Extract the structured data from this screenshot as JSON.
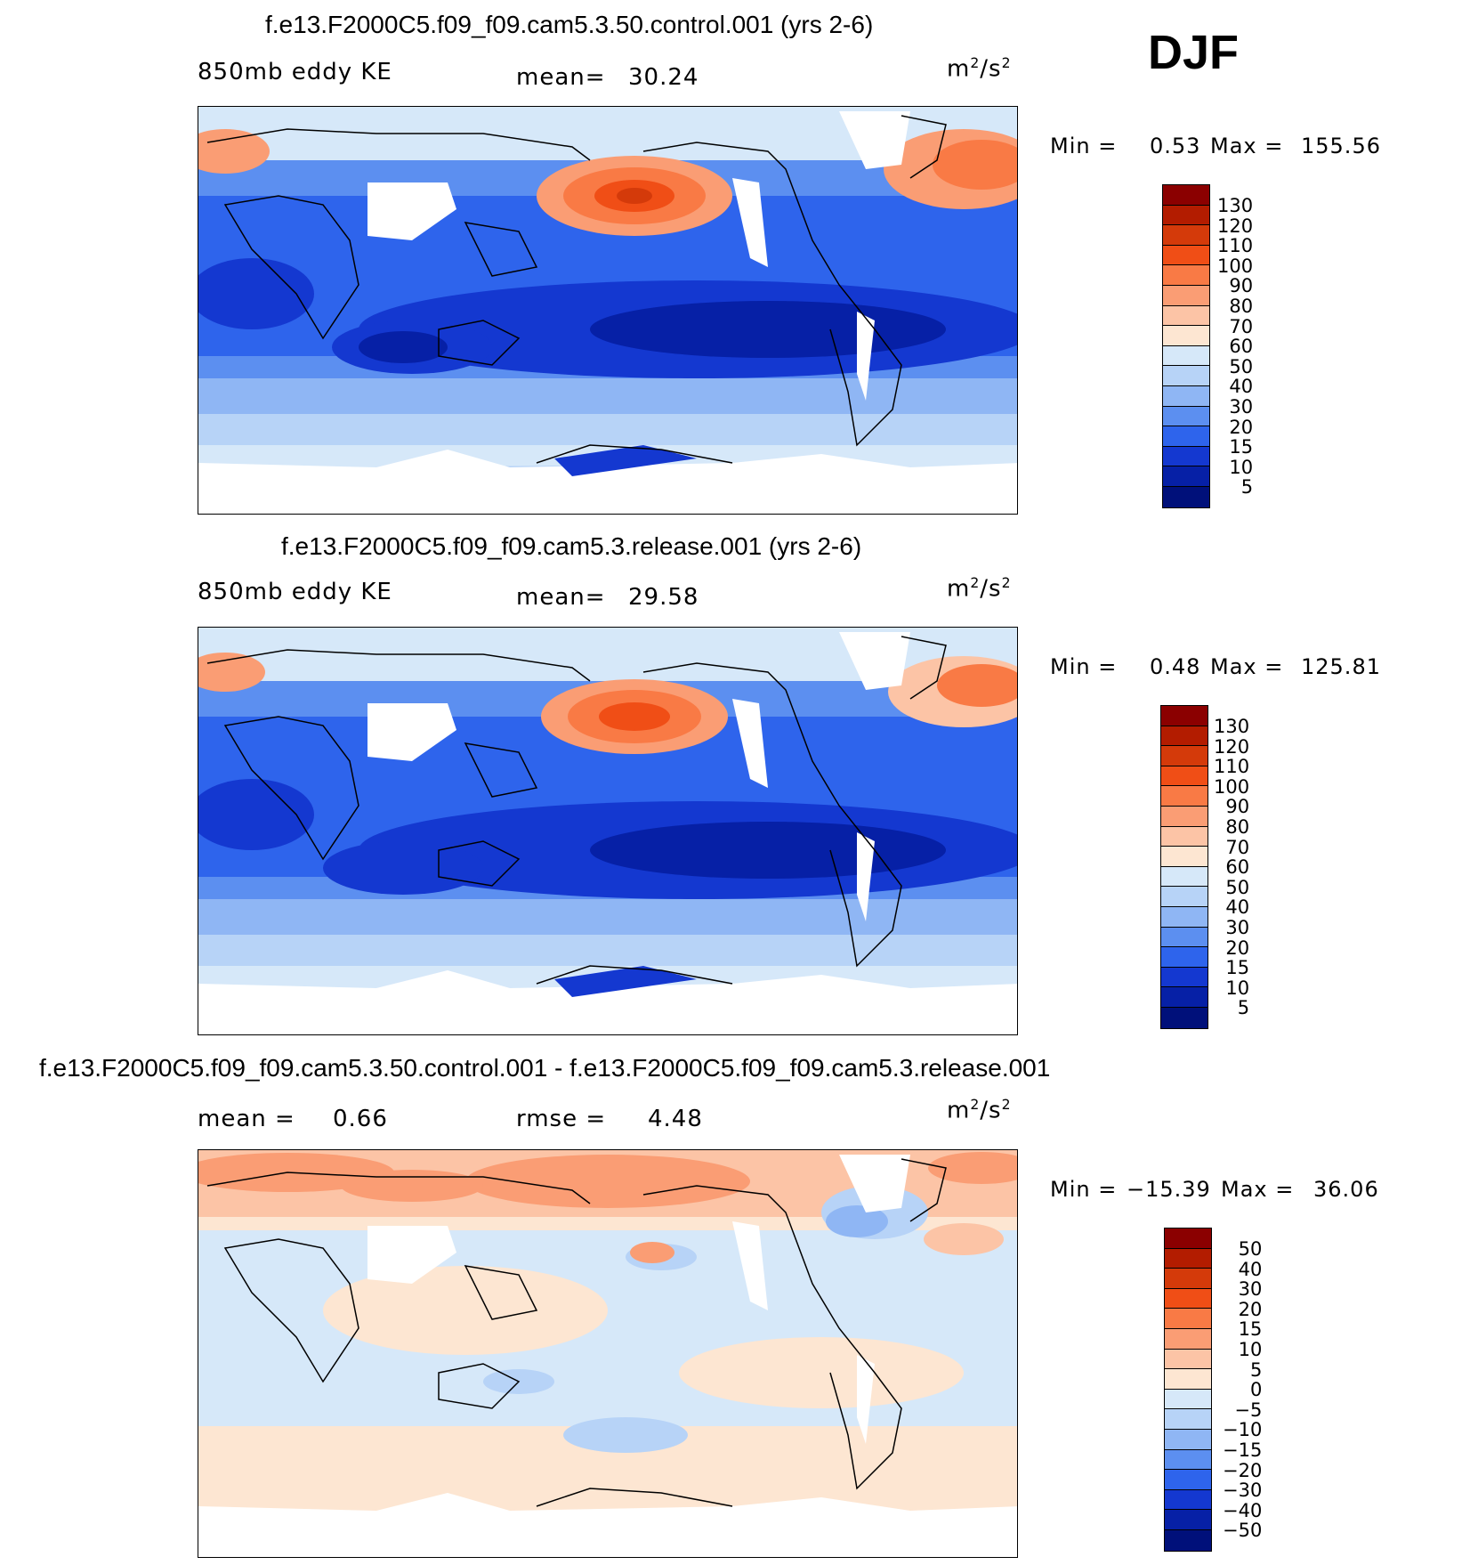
{
  "season": "DJF",
  "units_base": "m",
  "units_sq": "2",
  "units_sep": "/s",
  "panels": [
    {
      "title": "f.e13.F2000C5.f09_f09.cam5.3.50.control.001 (yrs 2-6)",
      "variable": "850mb eddy KE",
      "mean_label": "mean=",
      "mean_value": "30.24",
      "min_label": "Min =",
      "min_value": "0.53",
      "max_label": "Max =",
      "max_value": "155.56"
    },
    {
      "title": "f.e13.F2000C5.f09_f09.cam5.3.release.001 (yrs 2-6)",
      "variable": "850mb eddy KE",
      "mean_label": "mean=",
      "mean_value": "29.58",
      "min_label": "Min =",
      "min_value": "0.48",
      "max_label": "Max =",
      "max_value": "125.81"
    },
    {
      "title": "f.e13.F2000C5.f09_f09.cam5.3.50.control.001 - f.e13.F2000C5.f09_f09.cam5.3.release.001",
      "mean_label": "mean =",
      "mean_value": "0.66",
      "rmse_label": "rmse =",
      "rmse_value": "4.48",
      "min_label": "Min =",
      "min_value": "−15.39",
      "max_label": "Max =",
      "max_value": "36.06"
    }
  ],
  "colorbar_abs": {
    "levels": [
      "130",
      "120",
      "110",
      "100",
      "90",
      "80",
      "70",
      "60",
      "50",
      "40",
      "30",
      "20",
      "15",
      "10",
      "5"
    ],
    "colors": [
      "#8b0000",
      "#b31c00",
      "#d43a0a",
      "#f04e16",
      "#f97a45",
      "#fa9d74",
      "#fcc4a6",
      "#fde6d2",
      "#d6e8f9",
      "#b7d3f7",
      "#8fb6f4",
      "#5c8ff0",
      "#2e64ec",
      "#1438d0",
      "#0620a6",
      "#00107a"
    ]
  },
  "colorbar_diff": {
    "levels": [
      "50",
      "40",
      "30",
      "20",
      "15",
      "10",
      "5",
      "0",
      "−5",
      "−10",
      "−15",
      "−20",
      "−30",
      "−40",
      "−50"
    ],
    "colors": [
      "#8b0000",
      "#b31c00",
      "#d43a0a",
      "#f04e16",
      "#f97a45",
      "#fa9d74",
      "#fcc4a6",
      "#fde6d2",
      "#d6e8f9",
      "#b7d3f7",
      "#8fb6f4",
      "#5c8ff0",
      "#2e64ec",
      "#1438d0",
      "#0620a6",
      "#00107a"
    ]
  }
}
